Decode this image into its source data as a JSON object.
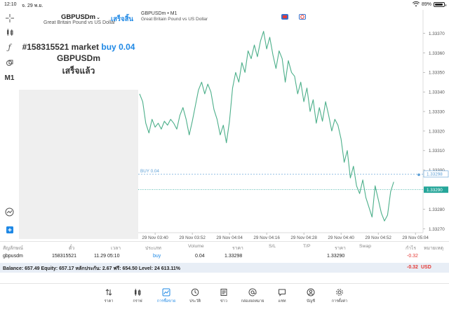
{
  "status": {
    "time": "12:10",
    "date": "จ. 29 พ.ย.",
    "battery": "89%"
  },
  "left_tools": {
    "timeframe": "M1"
  },
  "symbol_panel": {
    "symbol": "GBPUSDm",
    "subtitle": "Great Britain Pound vs US Dollar",
    "done": "เสร็จสิ้น",
    "order_id": "#158315521",
    "order_type": "market",
    "order_side": "buy",
    "order_volume": "0.04",
    "order_symbol": "GBPUSDm",
    "order_status": "เสร็จแล้ว"
  },
  "chart_header": {
    "title": "GBPUSDm • M1",
    "subtitle": "Great Britain Pound vs US Dollar"
  },
  "chart_data": {
    "type": "line",
    "ylim": [
      1.33268,
      1.33382
    ],
    "y_ticks": [
      "1.33370",
      "1.33360",
      "1.33350",
      "1.33340",
      "1.33330",
      "1.33320",
      "1.33310",
      "1.33300",
      "1.33280",
      "1.33270"
    ],
    "y_tick_values": [
      1.3337,
      1.3336,
      1.3335,
      1.3334,
      1.3333,
      1.3332,
      1.3331,
      1.333,
      1.3328,
      1.3327
    ],
    "x_ticks": [
      "29 Nov 03:40",
      "29 Nov 03:52",
      "29 Nov 04:04",
      "29 Nov 04:16",
      "29 Nov 04:28",
      "29 Nov 04:40",
      "29 Nov 04:52",
      "29 Nov 05:04"
    ],
    "x_tick_index": [
      5,
      17,
      29,
      41,
      53,
      65,
      77,
      89
    ],
    "x_count": 92,
    "price_line": {
      "label": "BUY 0.04",
      "price_text": "1.33298",
      "value": 1.33298,
      "color": "#5c9fd6"
    },
    "bid_line": {
      "price_text": "1.33290",
      "value": 1.3329,
      "color": "#26a69a"
    },
    "series": [
      {
        "color": "#4caf8a",
        "values": [
          1.33339,
          1.33335,
          1.33324,
          1.33319,
          1.33326,
          1.33322,
          1.33324,
          1.33321,
          1.33325,
          1.33323,
          1.33326,
          1.33324,
          1.33321,
          1.33328,
          1.33332,
          1.33326,
          1.33318,
          1.33325,
          1.33333,
          1.33341,
          1.33345,
          1.33339,
          1.33344,
          1.3334,
          1.33331,
          1.33326,
          1.33318,
          1.33323,
          1.33314,
          1.33325,
          1.33342,
          1.3335,
          1.33345,
          1.33355,
          1.3335,
          1.33361,
          1.33357,
          1.33364,
          1.33358,
          1.33366,
          1.33371,
          1.33362,
          1.33368,
          1.33359,
          1.33352,
          1.33361,
          1.33357,
          1.33345,
          1.33356,
          1.3335,
          1.33348,
          1.33339,
          1.33345,
          1.33335,
          1.33342,
          1.3333,
          1.33336,
          1.33324,
          1.33332,
          1.33325,
          1.33335,
          1.33328,
          1.3332,
          1.33326,
          1.33323,
          1.33316,
          1.33304,
          1.3331,
          1.33296,
          1.33302,
          1.33292,
          1.33288,
          1.33295,
          1.33286,
          1.33281,
          1.33276,
          1.33292,
          1.33285,
          1.33278,
          1.33274,
          1.33277,
          1.33289,
          1.33294
        ]
      }
    ]
  },
  "table": {
    "headers": [
      "สัญลักษณ์",
      "ตั๋ว",
      "เวลา",
      "ประเภท",
      "Volume",
      "ราคา",
      "S/L",
      "T/P",
      "ราคา",
      "Swap",
      "กำไร",
      "หมายเหตุ"
    ],
    "row": {
      "symbol": "gbpusdm",
      "ticket": "158315521",
      "time": "11.29 05:10",
      "type": "buy",
      "volume": "0.04",
      "open_price": "1.33298",
      "current_price": "1.33290",
      "profit": "-0.32"
    }
  },
  "balance": {
    "text": "Balance: 657.49 Equity: 657.17 หลักประกัน: 2.67 ฟรี: 654.50 Level: 24 613.11%",
    "profit": "-0.32",
    "currency": "USD"
  },
  "tabs": [
    {
      "label": "ราคา",
      "icon": "quotes-icon"
    },
    {
      "label": "กราฟ",
      "icon": "chart-candles-icon"
    },
    {
      "label": "การซื้อขาย",
      "icon": "trade-icon",
      "active": true
    },
    {
      "label": "ประวัติ",
      "icon": "history-icon"
    },
    {
      "label": "ข่าว",
      "icon": "news-icon"
    },
    {
      "label": "กล่องจดหมาย",
      "icon": "mailbox-icon"
    },
    {
      "label": "แชท",
      "icon": "chat-icon"
    },
    {
      "label": "บัญชี",
      "icon": "account-icon"
    },
    {
      "label": "การตั้งค่า",
      "icon": "settings-icon"
    }
  ],
  "colors": {
    "accent": "#1e88e5",
    "loss": "#e53935",
    "line": "#4caf8a"
  }
}
